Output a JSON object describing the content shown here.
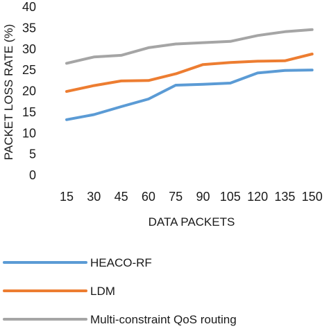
{
  "chart_data": {
    "type": "line",
    "title": "",
    "xlabel": "DATA PACKETS",
    "ylabel": "PACKET LOSS RATE (%)",
    "categories": [
      "15",
      "30",
      "45",
      "60",
      "75",
      "90",
      "105",
      "120",
      "135",
      "150"
    ],
    "ylim": [
      0,
      40
    ],
    "yticks": [
      0,
      5,
      10,
      15,
      20,
      25,
      30,
      35,
      40
    ],
    "grid": false,
    "legend_position": "bottom",
    "series": [
      {
        "name": "HEACO-RF",
        "color": "#5b9bd5",
        "values": [
          13.2,
          14.4,
          16.3,
          18.1,
          21.4,
          21.6,
          21.9,
          24.3,
          24.9,
          25.0
        ]
      },
      {
        "name": "LDM",
        "color": "#ed7d31",
        "values": [
          19.9,
          21.3,
          22.4,
          22.5,
          24.1,
          26.3,
          26.8,
          27.1,
          27.2,
          28.8
        ]
      },
      {
        "name": "Multi-constraint QoS routing",
        "color": "#a5a5a5",
        "values": [
          26.6,
          28.1,
          28.5,
          30.3,
          31.2,
          31.5,
          31.8,
          33.2,
          34.1,
          34.6
        ]
      }
    ]
  }
}
